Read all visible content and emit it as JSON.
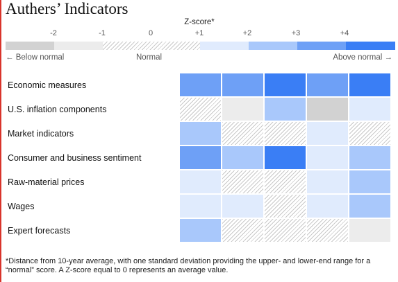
{
  "title": "Authers’ Indicators",
  "legend": {
    "scale_label": "Z-score*",
    "ticks": [
      "-2",
      "-1",
      "0",
      "+1",
      "+2",
      "+3",
      "+4"
    ],
    "below_label": "← Below normal",
    "normal_label": "Normal",
    "above_label": "Above normal →"
  },
  "colors": {
    "below_dark": "#d2d2d2",
    "below_light": "#ececec",
    "normal": "hatch",
    "above_1": "#e0ebfd",
    "above_2": "#a9c8fb",
    "above_3": "#6ea0f6",
    "above_4": "#3a7ef5"
  },
  "chart_data": {
    "type": "heatmap",
    "title": "Authers’ Indicators",
    "value_label": "Z-score*",
    "categories": [
      "Economic measures",
      "U.S. inflation components",
      "Market indicators",
      "Consumer and business sentiment",
      "Raw-material prices",
      "Wages",
      "Expert forecasts"
    ],
    "bins": [
      "below_dark",
      "below_light",
      "normal",
      "above_1",
      "above_2",
      "above_3",
      "above_4"
    ],
    "cells": [
      [
        "above_3",
        "above_3",
        "above_4",
        "above_3",
        "above_4"
      ],
      [
        "normal",
        "below_light",
        "above_2",
        "below_dark",
        "above_1"
      ],
      [
        "above_2",
        "normal",
        "normal",
        "above_1",
        "normal"
      ],
      [
        "above_3",
        "above_2",
        "above_4",
        "above_1",
        "above_2"
      ],
      [
        "above_1",
        "normal",
        "normal",
        "above_1",
        "above_2"
      ],
      [
        "above_1",
        "above_1",
        "normal",
        "above_1",
        "above_2"
      ],
      [
        "above_2",
        "normal",
        "normal",
        "normal",
        "below_light"
      ]
    ]
  },
  "footnote": "*Distance from 10-year average, with one standard deviation providing the upper- and lower-end range for a “normal” score. A Z-score equal to 0 represents an average value."
}
